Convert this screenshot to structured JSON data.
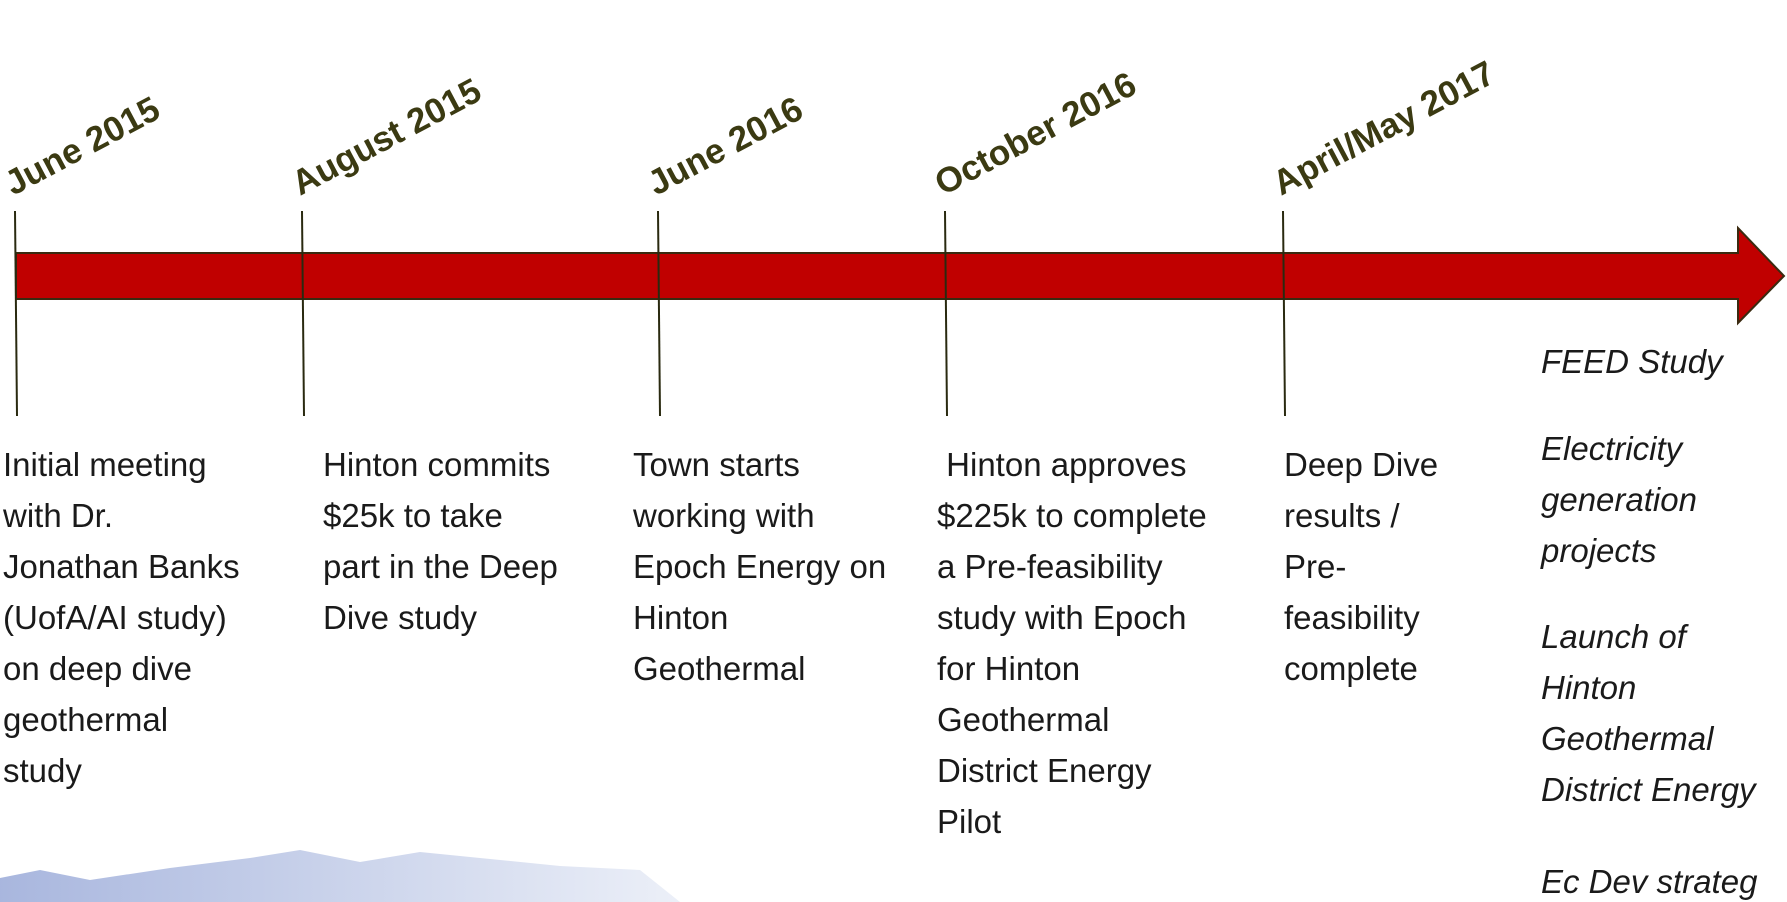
{
  "milestones": [
    {
      "date": "June 2015",
      "description": [
        "Initial meeting",
        "with Dr.",
        "Jonathan Banks",
        "(UofA/AI study)",
        "on deep dive",
        "geothermal",
        "study"
      ]
    },
    {
      "date": "August 2015",
      "description": [
        "Hinton commits",
        "$25k to take",
        "part in the Deep",
        "Dive study"
      ]
    },
    {
      "date": "June 2016",
      "description": [
        "Town starts",
        "working with",
        "Epoch Energy on",
        "Hinton",
        "Geothermal"
      ]
    },
    {
      "date": "October 2016",
      "description": [
        " Hinton approves",
        "$225k to complete",
        "a Pre-feasibility",
        "study with Epoch",
        "for Hinton",
        "Geothermal",
        "District Energy",
        "Pilot"
      ]
    },
    {
      "date": "April/May 2017",
      "description": [
        "Deep Dive",
        "results /",
        "Pre-",
        "feasibility",
        "complete"
      ]
    }
  ],
  "future": [
    [
      "FEED Study"
    ],
    [
      "Electricity",
      "generation",
      "projects"
    ],
    [
      "Launch of",
      "Hinton",
      "Geothermal",
      "District Energy"
    ],
    [
      "Ec Dev strateg"
    ]
  ]
}
